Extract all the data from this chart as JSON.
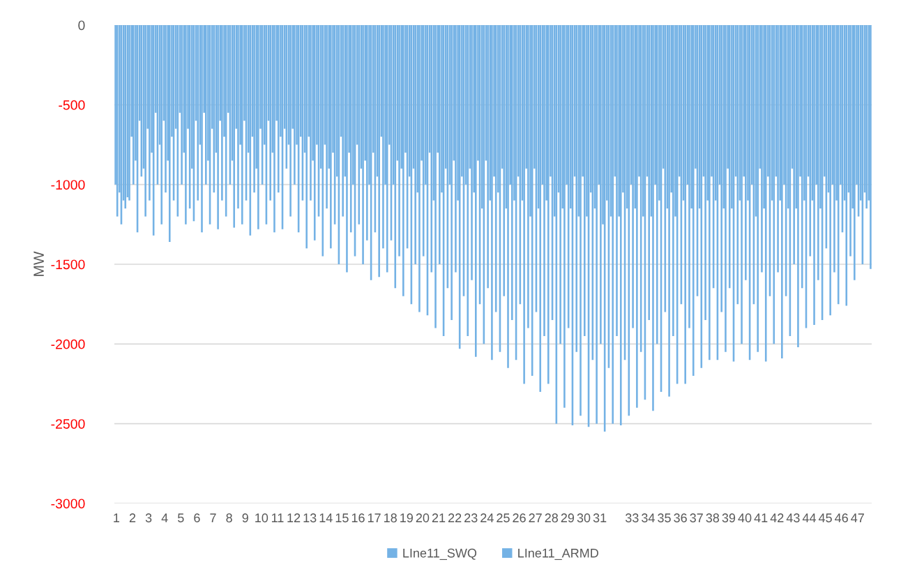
{
  "chart_data": {
    "type": "bar",
    "ylabel": "MW",
    "categories": [
      "1",
      null,
      null,
      null,
      "2",
      null,
      null,
      null,
      "3",
      null,
      null,
      null,
      "4",
      null,
      null,
      null,
      "5",
      null,
      null,
      null,
      "6",
      null,
      null,
      null,
      "7",
      null,
      null,
      null,
      "8",
      null,
      null,
      null,
      "9",
      null,
      null,
      null,
      "10",
      null,
      null,
      null,
      "11",
      null,
      null,
      null,
      "12",
      null,
      null,
      null,
      "13",
      null,
      null,
      null,
      "14",
      null,
      null,
      null,
      "15",
      null,
      null,
      null,
      "16",
      null,
      null,
      null,
      "17",
      null,
      null,
      null,
      "18",
      null,
      null,
      null,
      "19",
      null,
      null,
      null,
      "20",
      null,
      null,
      null,
      "21",
      null,
      null,
      null,
      "22",
      null,
      null,
      null,
      "23",
      null,
      null,
      null,
      "24",
      null,
      null,
      null,
      "25",
      null,
      null,
      null,
      "26",
      null,
      null,
      null,
      "27",
      null,
      null,
      null,
      "28",
      null,
      null,
      null,
      "29",
      null,
      null,
      null,
      "30",
      null,
      null,
      null,
      "31",
      null,
      null,
      null,
      null,
      null,
      null,
      null,
      "33",
      null,
      null,
      null,
      "34",
      null,
      null,
      null,
      "35",
      null,
      null,
      null,
      "36",
      null,
      null,
      null,
      "37",
      null,
      null,
      null,
      "38",
      null,
      null,
      null,
      "39",
      null,
      null,
      null,
      "40",
      null,
      null,
      null,
      "41",
      null,
      null,
      null,
      "42",
      null,
      null,
      null,
      "43",
      null,
      null,
      null,
      "44",
      null,
      null,
      null,
      "45",
      null,
      null,
      null,
      "46",
      null,
      null,
      null,
      "47",
      null,
      null,
      null
    ],
    "series": [
      {
        "name": "LIne11_SWQ",
        "color": "#74b2e5",
        "values": [
          -1000,
          -1050,
          -1100,
          -1080,
          -700,
          -850,
          -600,
          -900,
          -650,
          -800,
          -550,
          -750,
          -600,
          -850,
          -700,
          -650,
          -550,
          -800,
          -650,
          -900,
          -600,
          -750,
          -550,
          -850,
          -650,
          -800,
          -600,
          -700,
          -550,
          -850,
          -650,
          -750,
          -600,
          -800,
          -700,
          -900,
          -650,
          -750,
          -600,
          -800,
          -600,
          -700,
          -650,
          -750,
          -650,
          -750,
          -700,
          -800,
          -700,
          -850,
          -750,
          -900,
          -750,
          -900,
          -800,
          -950,
          -700,
          -950,
          -800,
          -1000,
          -750,
          -900,
          -850,
          -1000,
          -800,
          -950,
          -700,
          -1000,
          -750,
          -1000,
          -850,
          -900,
          -800,
          -950,
          -900,
          -1050,
          -850,
          -1000,
          -800,
          -1100,
          -800,
          -1050,
          -900,
          -1000,
          -850,
          -1100,
          -950,
          -1000,
          -900,
          -1050,
          -850,
          -1150,
          -850,
          -1100,
          -950,
          -1050,
          -900,
          -1150,
          -1000,
          -1100,
          -950,
          -1100,
          -900,
          -1200,
          -900,
          -1150,
          -1000,
          -1100,
          -950,
          -1200,
          -1050,
          -1150,
          -1000,
          -1150,
          -950,
          -1200,
          -950,
          -1200,
          -1050,
          -1150,
          -1000,
          -1250,
          -1100,
          -1200,
          -950,
          -1200,
          -1050,
          -1150,
          -1000,
          -1150,
          -950,
          -1200,
          -950,
          -1200,
          -1000,
          -1100,
          -900,
          -1150,
          -1050,
          -1200,
          -950,
          -1100,
          -1000,
          -1150,
          -900,
          -1150,
          -950,
          -1100,
          -950,
          -1100,
          -1000,
          -1150,
          -900,
          -1150,
          -950,
          -1100,
          -950,
          -1100,
          -1000,
          -1200,
          -900,
          -1150,
          -950,
          -1100,
          -950,
          -1100,
          -1000,
          -1150,
          -900,
          -1150,
          -950,
          -1100,
          -950,
          -1100,
          -1000,
          -1150,
          -950,
          -1050,
          -1000,
          -1100,
          -1000,
          -1100,
          -1050,
          -1150,
          -1000,
          -1100,
          -1050,
          -1100
        ]
      },
      {
        "name": "LIne11_ARMD",
        "color": "#74b2e5",
        "values": [
          -1200,
          -1250,
          -1150,
          -1100,
          -1000,
          -1300,
          -950,
          -1200,
          -1100,
          -1320,
          -1000,
          -1250,
          -1050,
          -1360,
          -1100,
          -1200,
          -1000,
          -1250,
          -1150,
          -1230,
          -1100,
          -1300,
          -1000,
          -1250,
          -1050,
          -1280,
          -1100,
          -1200,
          -1000,
          -1270,
          -1150,
          -1250,
          -1100,
          -1320,
          -1050,
          -1280,
          -1000,
          -1250,
          -1100,
          -1300,
          -1050,
          -1280,
          -900,
          -1200,
          -1000,
          -1300,
          -1100,
          -1400,
          -1100,
          -1350,
          -1200,
          -1450,
          -1150,
          -1400,
          -1250,
          -1500,
          -1200,
          -1550,
          -1300,
          -1450,
          -1250,
          -1500,
          -1350,
          -1600,
          -1300,
          -1580,
          -1400,
          -1550,
          -1350,
          -1650,
          -1450,
          -1700,
          -1400,
          -1750,
          -1500,
          -1800,
          -1450,
          -1820,
          -1550,
          -1900,
          -1500,
          -1950,
          -1650,
          -1850,
          -1550,
          -2030,
          -1700,
          -1950,
          -1600,
          -2080,
          -1750,
          -2000,
          -1650,
          -2100,
          -1800,
          -2050,
          -1700,
          -2150,
          -1850,
          -2100,
          -1750,
          -2250,
          -1900,
          -2200,
          -1800,
          -2300,
          -1950,
          -2250,
          -1850,
          -2500,
          -2000,
          -2400,
          -1900,
          -2510,
          -2050,
          -2450,
          -1950,
          -2520,
          -2100,
          -2500,
          -2000,
          -2550,
          -2150,
          -2500,
          -1950,
          -2510,
          -2100,
          -2450,
          -1900,
          -2400,
          -2050,
          -2350,
          -1850,
          -2420,
          -2000,
          -2300,
          -1800,
          -2330,
          -1950,
          -2250,
          -1750,
          -2250,
          -1900,
          -2200,
          -1700,
          -2150,
          -1850,
          -2100,
          -1650,
          -2100,
          -1800,
          -2050,
          -1650,
          -2110,
          -1750,
          -2000,
          -1600,
          -2100,
          -1750,
          -2050,
          -1550,
          -2110,
          -1700,
          -2000,
          -1550,
          -2090,
          -1700,
          -1950,
          -1500,
          -2020,
          -1650,
          -1900,
          -1450,
          -1880,
          -1600,
          -1850,
          -1400,
          -1820,
          -1550,
          -1750,
          -1300,
          -1760,
          -1450,
          -1600,
          -1200,
          -1500,
          -1150,
          -1530
        ]
      }
    ],
    "ylim": [
      -3000,
      0
    ],
    "yticks": [
      -3000,
      -2500,
      -2000,
      -1500,
      -1000,
      -500,
      0
    ],
    "grid": "y",
    "legend": "bottom"
  }
}
